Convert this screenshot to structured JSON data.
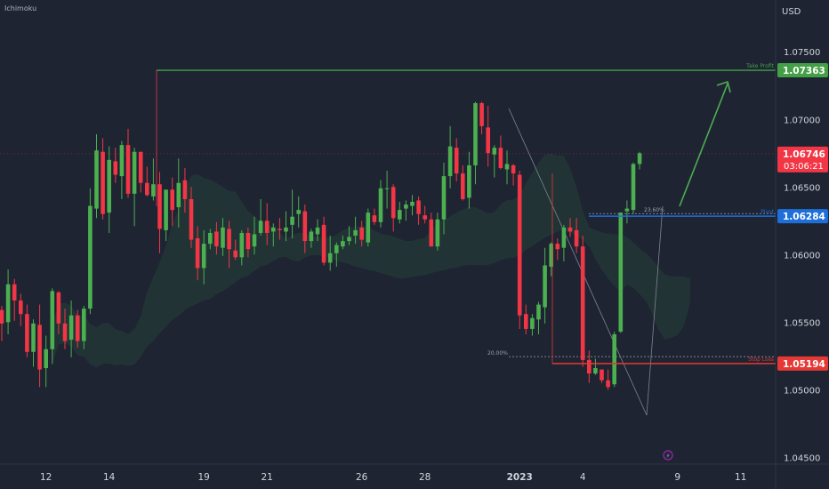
{
  "indicator_label": "Ichimoku",
  "colors": {
    "background": "#1e2432",
    "bull": "#4caf50",
    "bear": "#f23645",
    "take_profit": "#43a047",
    "stop_loss": "#e53935",
    "pivot": "#1e6fd9",
    "axis_text": "#d1d4dc"
  },
  "chart_data": {
    "type": "candlestick",
    "currency": "USD",
    "ylim": [
      1.0445,
      1.0785
    ],
    "y_ticks": [
      "1.07500",
      "1.07000",
      "1.06500",
      "1.06000",
      "1.05500",
      "1.05000",
      "1.04500"
    ],
    "x_ticks": [
      {
        "label": "12",
        "idx": 7
      },
      {
        "label": "14",
        "idx": 17
      },
      {
        "label": "19",
        "idx": 32
      },
      {
        "label": "21",
        "idx": 42
      },
      {
        "label": "26",
        "idx": 57
      },
      {
        "label": "28",
        "idx": 67
      },
      {
        "label": "2023",
        "idx": 82
      },
      {
        "label": "4",
        "idx": 92
      },
      {
        "label": "9",
        "idx": 107
      },
      {
        "label": "11",
        "idx": 117
      }
    ],
    "start_price": 1.0545,
    "candles": [
      [
        1.0559,
        1.0549,
        1.0536,
        1.0562
      ],
      [
        1.055,
        1.0578,
        1.0541,
        1.0589
      ],
      [
        1.0578,
        1.0566,
        1.0551,
        1.0582
      ],
      [
        1.0566,
        1.0556,
        1.0547,
        1.0571
      ],
      [
        1.0556,
        1.0528,
        1.0524,
        1.0563
      ],
      [
        1.0528,
        1.0549,
        1.0517,
        1.0552
      ],
      [
        1.0548,
        1.0515,
        1.0502,
        1.0563
      ],
      [
        1.0516,
        1.053,
        1.0502,
        1.054
      ],
      [
        1.053,
        1.0573,
        1.0519,
        1.0575
      ],
      [
        1.0572,
        1.0549,
        1.0541,
        1.0573
      ],
      [
        1.0549,
        1.0536,
        1.053,
        1.056
      ],
      [
        1.0537,
        1.0555,
        1.0524,
        1.0566
      ],
      [
        1.0555,
        1.0536,
        1.0531,
        1.0559
      ],
      [
        1.0536,
        1.056,
        1.053,
        1.0562
      ],
      [
        1.056,
        1.0636,
        1.0556,
        1.0649
      ],
      [
        1.0634,
        1.0677,
        1.0627,
        1.0689
      ],
      [
        1.0676,
        1.063,
        1.0626,
        1.0686
      ],
      [
        1.0631,
        1.067,
        1.0616,
        1.068
      ],
      [
        1.0669,
        1.0659,
        1.0653,
        1.0679
      ],
      [
        1.0658,
        1.0681,
        1.0641,
        1.0684
      ],
      [
        1.0681,
        1.0645,
        1.0642,
        1.0693
      ],
      [
        1.0645,
        1.0676,
        1.0621,
        1.0679
      ],
      [
        1.0676,
        1.0653,
        1.0646,
        1.0676
      ],
      [
        1.0653,
        1.0644,
        1.0643,
        1.0665
      ],
      [
        1.0643,
        1.0652,
        1.064,
        1.0671
      ],
      [
        1.0652,
        1.0619,
        1.0601,
        1.0661
      ],
      [
        1.0618,
        1.0648,
        1.061,
        1.0648
      ],
      [
        1.0648,
        1.0633,
        1.0621,
        1.0657
      ],
      [
        1.0635,
        1.0653,
        1.062,
        1.0671
      ],
      [
        1.0655,
        1.0641,
        1.0631,
        1.0664
      ],
      [
        1.0641,
        1.0611,
        1.0605,
        1.065
      ],
      [
        1.0612,
        1.059,
        1.0581,
        1.0621
      ],
      [
        1.059,
        1.0608,
        1.0578,
        1.0618
      ],
      [
        1.0608,
        1.0616,
        1.0604,
        1.0619
      ],
      [
        1.0617,
        1.0606,
        1.06,
        1.0624
      ],
      [
        1.0605,
        1.062,
        1.0599,
        1.0627
      ],
      [
        1.0619,
        1.0604,
        1.059,
        1.0625
      ],
      [
        1.0603,
        1.0598,
        1.0596,
        1.0611
      ],
      [
        1.0598,
        1.0616,
        1.0592,
        1.0618
      ],
      [
        1.0616,
        1.0604,
        1.0598,
        1.062
      ],
      [
        1.0606,
        1.0615,
        1.06,
        1.0628
      ],
      [
        1.0616,
        1.0625,
        1.0614,
        1.0641
      ],
      [
        1.0625,
        1.0616,
        1.0607,
        1.0638
      ],
      [
        1.0617,
        1.062,
        1.0606,
        1.0623
      ],
      [
        1.0619,
        1.0618,
        1.0611,
        1.0627
      ],
      [
        1.0617,
        1.062,
        1.061,
        1.0632
      ],
      [
        1.0622,
        1.0628,
        1.0612,
        1.0648
      ],
      [
        1.063,
        1.0633,
        1.062,
        1.0643
      ],
      [
        1.0632,
        1.061,
        1.0601,
        1.0637
      ],
      [
        1.061,
        1.0617,
        1.0605,
        1.0619
      ],
      [
        1.0615,
        1.062,
        1.061,
        1.0626
      ],
      [
        1.0622,
        1.0594,
        1.0592,
        1.0628
      ],
      [
        1.0594,
        1.0601,
        1.0588,
        1.0614
      ],
      [
        1.0601,
        1.0607,
        1.0591,
        1.0609
      ],
      [
        1.0606,
        1.061,
        1.0604,
        1.0614
      ],
      [
        1.061,
        1.0613,
        1.0607,
        1.0621
      ],
      [
        1.0614,
        1.0618,
        1.0608,
        1.0628
      ],
      [
        1.062,
        1.0611,
        1.0606,
        1.0625
      ],
      [
        1.0609,
        1.0631,
        1.0606,
        1.0634
      ],
      [
        1.0629,
        1.0624,
        1.0622,
        1.0634
      ],
      [
        1.0624,
        1.0649,
        1.062,
        1.0655
      ],
      [
        1.0649,
        1.0649,
        1.0634,
        1.0662
      ],
      [
        1.065,
        1.0627,
        1.0617,
        1.0652
      ],
      [
        1.0626,
        1.0633,
        1.0623,
        1.0639
      ],
      [
        1.0634,
        1.0637,
        1.0625,
        1.064
      ],
      [
        1.0636,
        1.0639,
        1.0629,
        1.0644
      ],
      [
        1.064,
        1.063,
        1.0622,
        1.0643
      ],
      [
        1.0629,
        1.0626,
        1.0623,
        1.0636
      ],
      [
        1.0626,
        1.0606,
        1.0606,
        1.0631
      ],
      [
        1.0606,
        1.0626,
        1.0603,
        1.0631
      ],
      [
        1.0626,
        1.0658,
        1.0615,
        1.0668
      ],
      [
        1.0658,
        1.068,
        1.0649,
        1.0695
      ],
      [
        1.0679,
        1.066,
        1.0654,
        1.0686
      ],
      [
        1.066,
        1.0641,
        1.064,
        1.0666
      ],
      [
        1.0642,
        1.0666,
        1.0634,
        1.0676
      ],
      [
        1.0666,
        1.0712,
        1.0652,
        1.0713
      ],
      [
        1.0712,
        1.0695,
        1.0689,
        1.0713
      ],
      [
        1.0694,
        1.0675,
        1.0665,
        1.071
      ],
      [
        1.0674,
        1.0679,
        1.0657,
        1.0681
      ],
      [
        1.0679,
        1.0664,
        1.0663,
        1.0688
      ],
      [
        1.0663,
        1.0667,
        1.0652,
        1.0677
      ],
      [
        1.0666,
        1.066,
        1.0651,
        1.0667
      ],
      [
        1.0659,
        1.0555,
        1.0545,
        1.0662
      ],
      [
        1.0556,
        1.0545,
        1.0541,
        1.0563
      ],
      [
        1.0545,
        1.0553,
        1.054,
        1.0556
      ],
      [
        1.0552,
        1.0563,
        1.0541,
        1.0565
      ],
      [
        1.0561,
        1.0592,
        1.0549,
        1.0605
      ],
      [
        1.0591,
        1.0608,
        1.0584,
        1.0609
      ],
      [
        1.0608,
        1.0604,
        1.0596,
        1.0612
      ],
      [
        1.0605,
        1.062,
        1.0595,
        1.0622
      ],
      [
        1.062,
        1.0617,
        1.0613,
        1.0627
      ],
      [
        1.0618,
        1.0606,
        1.0601,
        1.0627
      ],
      [
        1.0606,
        1.0522,
        1.0517,
        1.0614
      ],
      [
        1.0522,
        1.0512,
        1.0505,
        1.0529
      ],
      [
        1.0512,
        1.0516,
        1.0511,
        1.0523
      ],
      [
        1.0515,
        1.0507,
        1.0505,
        1.0515
      ],
      [
        1.0507,
        1.0502,
        1.05,
        1.0515
      ],
      [
        1.0504,
        1.0541,
        1.0502,
        1.0543
      ],
      [
        1.0543,
        1.0631,
        1.0542,
        1.0631
      ],
      [
        1.0632,
        1.0634,
        1.0623,
        1.064
      ],
      [
        1.0633,
        1.0667,
        1.063,
        1.0668
      ],
      [
        1.0667,
        1.0675,
        1.0663,
        1.0676
      ]
    ],
    "levels": {
      "take_profit": {
        "value": 1.07363,
        "label": "Take Profit",
        "price_label": "1.07363"
      },
      "pivot": {
        "value": 1.06284,
        "label": "Pivot",
        "price_label": "1.06284"
      },
      "stop_loss": {
        "value": 1.05194,
        "label": "Stop Loss",
        "price_label": "1.05194"
      },
      "current": {
        "value": 1.06746,
        "price_label": "1.06746",
        "countdown": "03:06:21"
      }
    },
    "fibs": [
      {
        "label": "23.60%",
        "value": 1.06303
      },
      {
        "label": "20.00%",
        "value": 1.05245
      }
    ]
  }
}
